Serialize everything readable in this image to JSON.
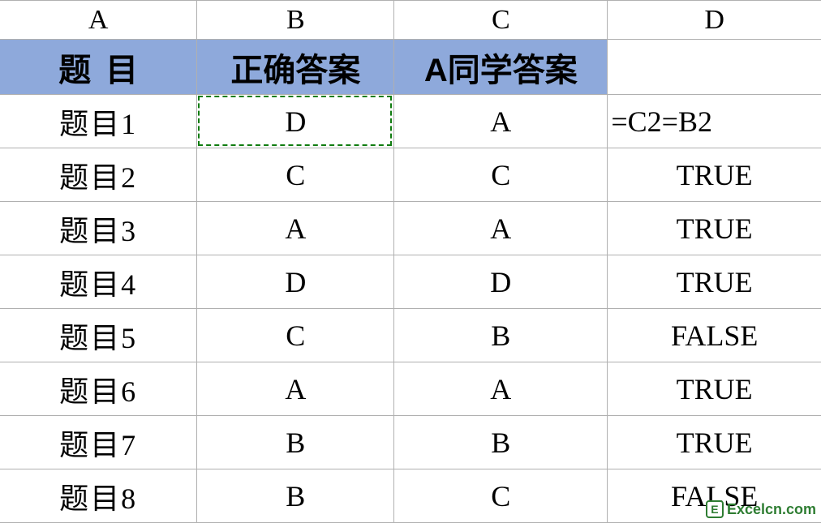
{
  "columns": {
    "A": "A",
    "B": "B",
    "C": "C",
    "D": "D"
  },
  "headers": {
    "A": "题目",
    "B": "正确答案",
    "C": "A同学答案",
    "D": ""
  },
  "rows": [
    {
      "A": "题目1",
      "B": "D",
      "C": "A",
      "D": "=C2=B2",
      "D_is_formula": true
    },
    {
      "A": "题目2",
      "B": "C",
      "C": "C",
      "D": "TRUE"
    },
    {
      "A": "题目3",
      "B": "A",
      "C": "A",
      "D": "TRUE"
    },
    {
      "A": "题目4",
      "B": "D",
      "C": "D",
      "D": "TRUE"
    },
    {
      "A": "题目5",
      "B": "C",
      "C": "B",
      "D": "FALSE"
    },
    {
      "A": "题目6",
      "B": "A",
      "C": "A",
      "D": "TRUE"
    },
    {
      "A": "题目7",
      "B": "B",
      "C": "B",
      "D": "TRUE"
    },
    {
      "A": "题目8",
      "B": "B",
      "C": "C",
      "D": "FALSE"
    }
  ],
  "selection": {
    "dashed_cell": {
      "row": 0,
      "col": "B"
    }
  },
  "colors": {
    "header_fill": "#8ea9db",
    "grid_line": "#b0b0b0",
    "dashed_border": "#107c10",
    "text": "#000000",
    "background": "#ffffff",
    "watermark": "#2e7d32"
  },
  "watermark": {
    "icon_letter": "E",
    "text": "Excelcn.com"
  }
}
